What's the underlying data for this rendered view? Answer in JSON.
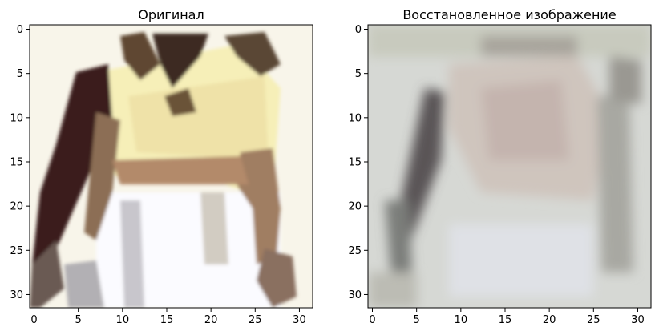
{
  "chart_data": [
    {
      "type": "heatmap",
      "title": "Оригинал",
      "xlim": [
        -0.5,
        31.5
      ],
      "ylim": [
        31.5,
        -0.5
      ],
      "x_ticks": [
        0,
        5,
        10,
        15,
        20,
        25,
        30
      ],
      "y_ticks": [
        0,
        5,
        10,
        15,
        20,
        25,
        30
      ],
      "grid": false,
      "image_size": [
        32,
        32
      ],
      "content": "32x32 RGB image, original"
    },
    {
      "type": "heatmap",
      "title": "Восстановленное изображение",
      "xlim": [
        -0.5,
        31.5
      ],
      "ylim": [
        31.5,
        -0.5
      ],
      "x_ticks": [
        0,
        5,
        10,
        15,
        20,
        25,
        30
      ],
      "y_ticks": [
        0,
        5,
        10,
        15,
        20,
        25,
        30
      ],
      "grid": false,
      "image_size": [
        32,
        32
      ],
      "content": "32x32 RGB image, reconstruction"
    }
  ]
}
